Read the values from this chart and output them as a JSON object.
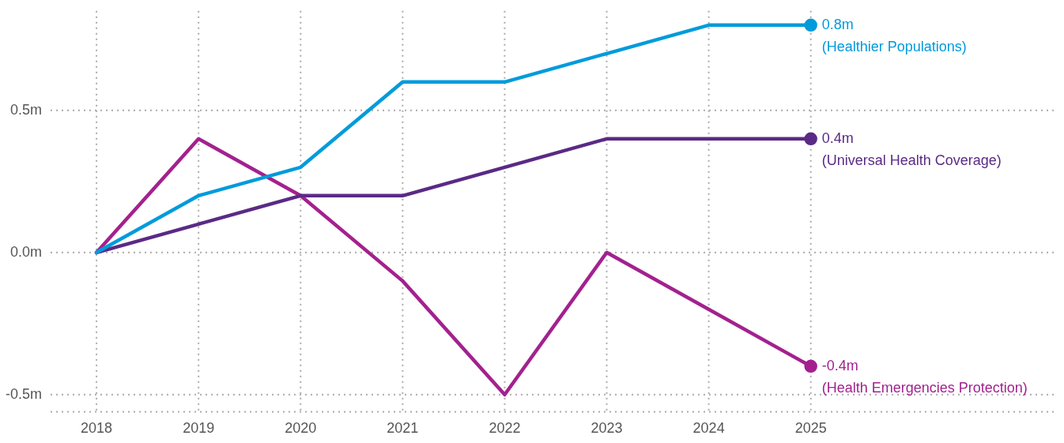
{
  "chart_data": {
    "type": "line",
    "x": [
      2018,
      2019,
      2020,
      2021,
      2022,
      2023,
      2024,
      2025
    ],
    "xlim": [
      2017.55,
      2027.4
    ],
    "xticks": [
      2018,
      2019,
      2020,
      2021,
      2022,
      2023,
      2024,
      2025
    ],
    "ylim": [
      -0.56,
      0.85
    ],
    "yticks": [
      {
        "value": -0.5,
        "label": "-0.5m"
      },
      {
        "value": 0,
        "label": "0.0m"
      },
      {
        "value": 0.5,
        "label": "0.5m"
      }
    ],
    "grid": true,
    "legend": false,
    "series": [
      {
        "name": "(Healthier Populations)",
        "color": "#009bdb",
        "values": [
          0,
          0.2,
          0.3,
          0.6,
          0.6,
          0.7,
          0.8,
          0.8
        ],
        "value_labels": [
          null,
          null,
          null,
          null,
          null,
          null,
          null,
          "0.8m"
        ]
      },
      {
        "name": "(Universal Health Coverage)",
        "color": "#5a2a85",
        "values": [
          0,
          0.1,
          0.2,
          0.2,
          0.3,
          0.4,
          0.4,
          0.4
        ],
        "value_labels": [
          null,
          null,
          null,
          null,
          null,
          null,
          null,
          "0.4m"
        ]
      },
      {
        "name": "(Health Emergencies Protection)",
        "color": "#a3218e",
        "values": [
          0,
          0.4,
          0.2,
          -0.1,
          -0.5,
          0,
          -0.2,
          -0.4
        ],
        "value_labels": [
          null,
          null,
          null,
          null,
          null,
          null,
          null,
          "-0.4m"
        ]
      }
    ]
  }
}
